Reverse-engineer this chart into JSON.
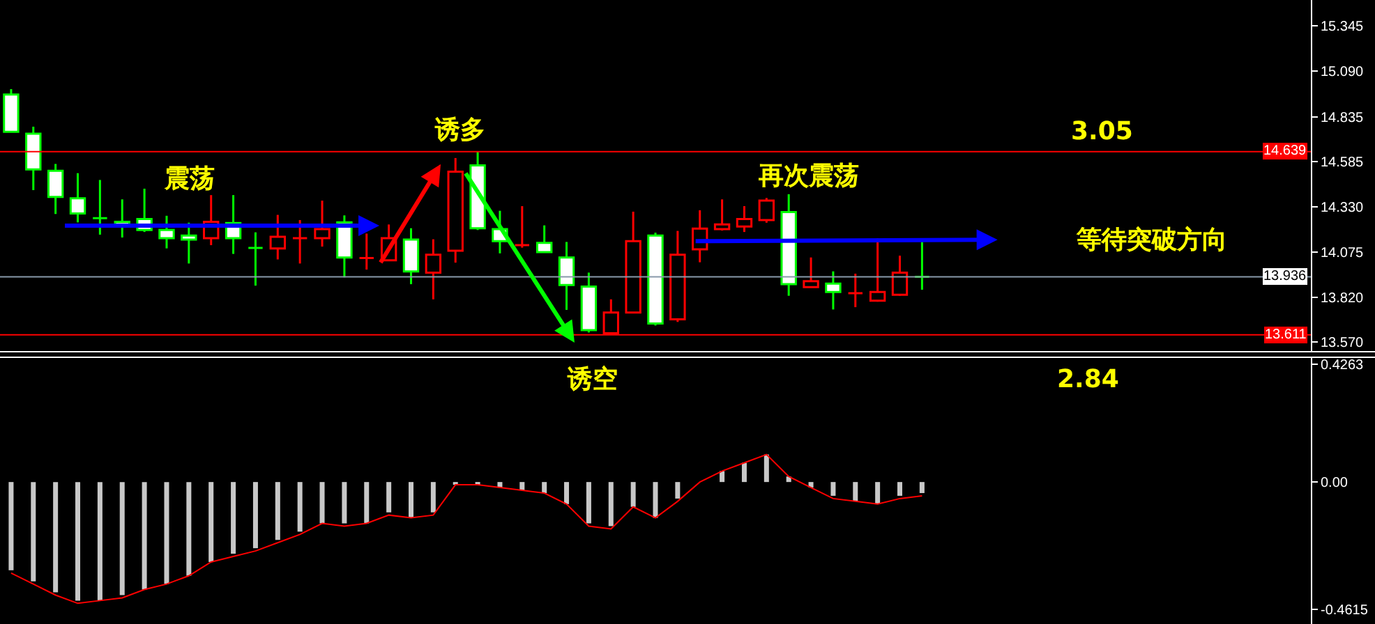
{
  "chart_data": [
    {
      "type": "candlestick",
      "categories": [
        null,
        null,
        null,
        null,
        null,
        null,
        null,
        null,
        null,
        null,
        null,
        null,
        null,
        null,
        null,
        null,
        null,
        null,
        null,
        null,
        null,
        null,
        null,
        null,
        null,
        null,
        null,
        null,
        null,
        null,
        null,
        null,
        null,
        null,
        null,
        null,
        null,
        null,
        null,
        null,
        null,
        null,
        null,
        null,
        null,
        null,
        null,
        null,
        null,
        null,
        null,
        null,
        null,
        null,
        null,
        null,
        null,
        null,
        null
      ],
      "ohlc": [
        [
          14.959,
          14.99,
          14.75,
          14.75
        ],
        [
          14.74,
          14.779,
          14.423,
          14.539
        ],
        [
          14.531,
          14.57,
          14.289,
          14.385
        ],
        [
          14.377,
          14.518,
          14.242,
          14.292
        ],
        [
          14.266,
          14.48,
          14.173,
          14.266
        ],
        [
          14.245,
          14.371,
          14.157,
          14.23
        ],
        [
          14.261,
          14.431,
          14.188,
          14.199
        ],
        [
          14.199,
          14.279,
          14.096,
          14.153
        ],
        [
          14.168,
          14.24,
          14.011,
          14.145
        ],
        [
          14.153,
          14.395,
          14.114,
          14.245
        ],
        [
          14.238,
          14.395,
          14.065,
          14.153
        ],
        [
          14.099,
          14.186,
          13.887,
          14.099
        ],
        [
          14.096,
          14.284,
          14.034,
          14.161
        ],
        [
          14.153,
          14.255,
          14.011,
          14.153
        ],
        [
          14.153,
          14.364,
          14.106,
          14.204
        ],
        [
          14.242,
          14.281,
          13.933,
          14.045
        ],
        [
          14.042,
          14.179,
          13.977,
          14.042
        ],
        [
          14.029,
          14.23,
          14.029,
          14.153
        ],
        [
          14.145,
          14.209,
          13.895,
          13.967
        ],
        [
          13.96,
          14.147,
          13.81,
          14.06
        ],
        [
          14.083,
          14.603,
          14.016,
          14.526
        ],
        [
          14.562,
          14.639,
          14.199,
          14.209
        ],
        [
          14.204,
          14.307,
          14.068,
          14.137
        ],
        [
          14.114,
          14.333,
          14.1,
          14.114
        ],
        [
          14.127,
          14.225,
          14.075,
          14.075
        ],
        [
          14.045,
          14.132,
          13.751,
          13.89
        ],
        [
          13.882,
          13.96,
          13.624,
          13.637
        ],
        [
          13.62,
          13.81,
          13.611,
          13.736
        ],
        [
          13.736,
          14.302,
          13.736,
          14.137
        ],
        [
          14.168,
          14.184,
          13.663,
          13.674
        ],
        [
          13.698,
          14.194,
          13.683,
          14.06
        ],
        [
          14.091,
          14.31,
          14.018,
          14.207
        ],
        [
          14.204,
          14.371,
          14.196,
          14.23
        ],
        [
          14.219,
          14.333,
          14.188,
          14.261
        ],
        [
          14.255,
          14.379,
          14.24,
          14.364
        ],
        [
          14.3,
          14.4,
          13.83,
          13.895
        ],
        [
          13.879,
          14.045,
          13.879,
          13.912
        ],
        [
          13.898,
          13.967,
          13.753,
          13.851
        ],
        [
          13.844,
          13.954,
          13.766,
          13.844
        ],
        [
          13.802,
          14.153,
          13.797,
          13.851
        ],
        [
          13.836,
          14.055,
          13.83,
          13.96
        ],
        [
          13.936,
          14.132,
          13.864,
          13.936
        ],
        null,
        null,
        null,
        null,
        null,
        null,
        null,
        null,
        null,
        null,
        null,
        null,
        null,
        null,
        null,
        null,
        null
      ],
      "colors": [
        "#00ff00",
        "#00ff00",
        "#00ff00",
        "#00ff00",
        "#00ff00",
        "#00ff00",
        "#00ff00",
        "#00ff00",
        "#00ff00",
        "#ff0000",
        "#00ff00",
        "#00ff00",
        "#ff0000",
        "#ff0000",
        "#ff0000",
        "#00ff00",
        "#ff0000",
        "#ff0000",
        "#00ff00",
        "#ff0000",
        "#ff0000",
        "#00ff00",
        "#00ff00",
        "#ff0000",
        "#00ff00",
        "#00ff00",
        "#00ff00",
        "#ff0000",
        "#ff0000",
        "#00ff00",
        "#ff0000",
        "#ff0000",
        "#ff0000",
        "#ff0000",
        "#ff0000",
        "#00ff00",
        "#ff0000",
        "#00ff00",
        "#ff0000",
        "#ff0000",
        "#ff0000",
        "#00ff00",
        null,
        null,
        null,
        null,
        null,
        null,
        null,
        null,
        null,
        null,
        null,
        null,
        null,
        null,
        null,
        null,
        null
      ],
      "ylim": [
        13.52,
        15.49
      ],
      "yticks": [
        15.345,
        {
          "value": 15.09,
          "label": "15.090"
        },
        14.835,
        14.585,
        {
          "value": 14.33,
          "label": "14.330"
        },
        14.075,
        {
          "value": 13.82,
          "label": "13.820"
        },
        {
          "value": 13.57,
          "label": "13.570"
        }
      ],
      "ref_lines": [
        {
          "axis": "y",
          "value": 14.639,
          "label": "14.639",
          "color": "#ff0000"
        },
        {
          "axis": "y",
          "value": 13.936,
          "label": "13.936",
          "color": "#8899aa"
        },
        {
          "axis": "y",
          "value": 13.611,
          "label": "13.611",
          "color": "#ff0000"
        }
      ],
      "annotations": [
        "震荡",
        "诱多",
        "再次震荡",
        "3.05",
        "等待突破方向"
      ],
      "tick_labels": "y"
    },
    {
      "type": "bar",
      "categories": [
        null,
        null,
        null,
        null,
        null,
        null,
        null,
        null,
        null,
        null,
        null,
        null,
        null,
        null,
        null,
        null,
        null,
        null,
        null,
        null,
        null,
        null,
        null,
        null,
        null,
        null,
        null,
        null,
        null,
        null,
        null,
        null,
        null,
        null,
        null,
        null,
        null,
        null,
        null,
        null,
        null,
        null,
        null,
        null,
        null,
        null,
        null,
        null,
        null,
        null,
        null,
        null,
        null,
        null,
        null,
        null,
        null,
        null,
        null
      ],
      "series": [
        {
          "type": "bar",
          "color": "#c8c8c8",
          "values": [
            -0.32,
            -0.36,
            -0.4,
            -0.43,
            -0.43,
            -0.41,
            -0.39,
            -0.37,
            -0.34,
            -0.29,
            -0.26,
            -0.24,
            -0.21,
            -0.18,
            -0.15,
            -0.15,
            -0.15,
            -0.11,
            -0.13,
            -0.11,
            -0.01,
            -0.01,
            -0.02,
            -0.03,
            -0.04,
            -0.08,
            -0.15,
            -0.16,
            -0.09,
            -0.13,
            -0.06,
            0,
            0.04,
            0.07,
            0.1,
            0.02,
            -0.02,
            -0.05,
            -0.07,
            -0.08,
            -0.05,
            -0.04,
            null,
            null,
            null,
            null,
            null,
            null,
            null,
            null,
            null,
            null,
            null,
            null,
            null,
            null,
            null,
            null,
            null
          ]
        },
        {
          "type": "line",
          "color": "#ff0000",
          "values": [
            -0.33,
            -0.37,
            -0.41,
            -0.44,
            -0.43,
            -0.42,
            -0.39,
            -0.37,
            -0.34,
            -0.29,
            -0.27,
            -0.25,
            -0.22,
            -0.19,
            -0.15,
            -0.16,
            -0.15,
            -0.12,
            -0.13,
            -0.12,
            -0.01,
            -0.01,
            -0.02,
            -0.03,
            -0.04,
            -0.08,
            -0.16,
            -0.17,
            -0.09,
            -0.13,
            -0.07,
            0,
            0.04,
            0.07,
            0.1,
            0.02,
            -0.02,
            -0.06,
            -0.07,
            -0.08,
            -0.06,
            -0.05,
            null,
            null,
            null,
            null,
            null,
            null,
            null,
            null,
            null,
            null,
            null,
            null,
            null,
            null,
            null,
            null,
            null
          ]
        }
      ],
      "ylim": [
        -0.52,
        0.45
      ],
      "yticks": [
        0.4263,
        {
          "value": 0,
          "label": "0.00"
        },
        -0.4615
      ],
      "annotations": [
        "诱空",
        "2.84"
      ],
      "tick_labels": "y"
    }
  ]
}
